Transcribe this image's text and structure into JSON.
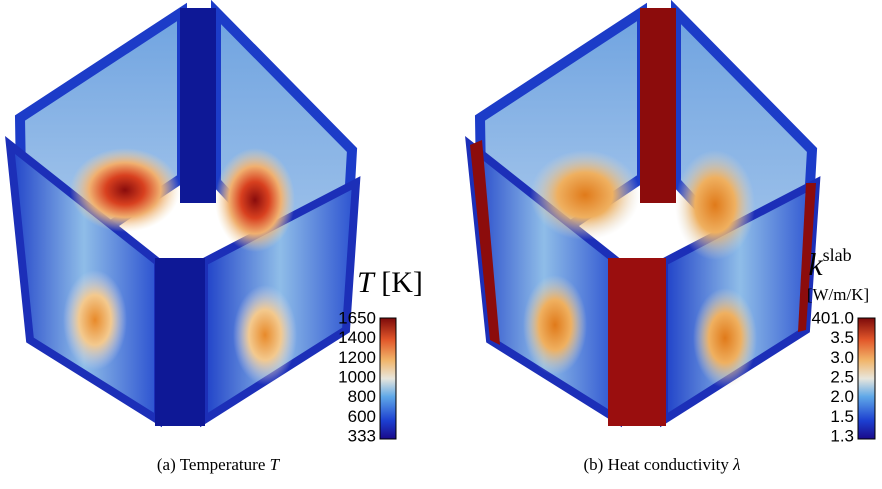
{
  "panels": [
    {
      "colorbar": {
        "symbol": "T",
        "unit": "[K]",
        "ticks": [
          "1650",
          "1400",
          "1200",
          "1000",
          "800",
          "600",
          "333"
        ]
      },
      "caption": {
        "label": "(a)",
        "text": "Temperature",
        "symbol": "T"
      }
    },
    {
      "colorbar": {
        "symbol": "k",
        "superscript": "slab",
        "unit": "[W/m/K]",
        "ticks": [
          "401.0",
          "3.5",
          "3.0",
          "2.5",
          "2.0",
          "1.5",
          "1.3"
        ]
      },
      "caption": {
        "label": "(b)",
        "text": "Heat conductivity",
        "symbol": "λ"
      }
    }
  ]
}
